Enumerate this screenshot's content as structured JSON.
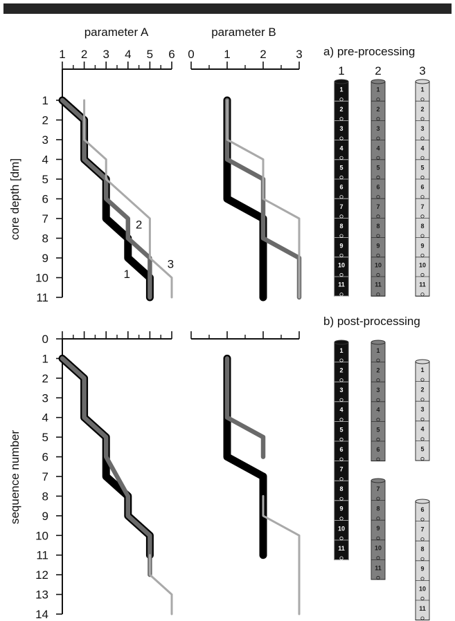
{
  "chart_data": [
    {
      "type": "line",
      "panel": "pre-processing",
      "x_axes": [
        {
          "title": "parameter A",
          "ticks": [
            "1",
            "2",
            "3",
            "4",
            "5",
            "6"
          ],
          "xlim": [
            1,
            6
          ]
        },
        {
          "title": "parameter B",
          "ticks": [
            "0",
            "1",
            "2",
            "3"
          ],
          "xlim": [
            0,
            3
          ]
        }
      ],
      "ylabel": "core depth [dm]",
      "yticks": [
        "1",
        "2",
        "3",
        "4",
        "5",
        "6",
        "7",
        "8",
        "9",
        "10",
        "11"
      ],
      "ylim": [
        1,
        11
      ],
      "series": [
        {
          "name": "1",
          "color": "#000000",
          "A": [
            [
              1,
              1
            ],
            [
              2,
              2
            ],
            [
              2,
              4
            ],
            [
              3,
              5
            ],
            [
              3,
              7
            ],
            [
              4,
              8
            ],
            [
              4,
              9
            ],
            [
              5,
              10
            ],
            [
              5,
              11
            ]
          ],
          "B": [
            [
              1,
              1
            ],
            [
              1,
              6
            ],
            [
              2,
              7
            ],
            [
              2,
              11
            ]
          ]
        },
        {
          "name": "2",
          "color": "#6a6a6a",
          "A": [
            [
              1,
              1
            ],
            [
              2,
              2
            ],
            [
              2,
              4
            ],
            [
              3,
              5
            ],
            [
              3,
              6
            ],
            [
              4,
              7
            ],
            [
              4,
              8
            ],
            [
              5,
              9
            ],
            [
              5,
              11
            ]
          ],
          "B": [
            [
              1,
              1
            ],
            [
              1,
              4
            ],
            [
              2,
              5
            ],
            [
              2,
              8
            ],
            [
              3,
              9
            ],
            [
              3,
              11
            ]
          ]
        },
        {
          "name": "3",
          "color": "#a9a9a9",
          "A": [
            [
              2,
              1
            ],
            [
              2,
              3
            ],
            [
              3,
              4
            ],
            [
              3,
              5
            ],
            [
              5,
              7
            ],
            [
              5,
              9
            ],
            [
              6,
              10
            ],
            [
              6,
              11
            ]
          ],
          "B": [
            [
              1,
              1
            ],
            [
              1,
              3
            ],
            [
              2,
              4
            ],
            [
              2,
              6
            ],
            [
              3,
              7
            ],
            [
              3,
              11
            ]
          ]
        }
      ],
      "line_labels": [
        {
          "text": "2",
          "x": 4.5,
          "y": 7.3
        },
        {
          "text": "1",
          "x": 3.95,
          "y": 9.8
        },
        {
          "text": "3",
          "x": 5.95,
          "y": 9.3
        }
      ]
    },
    {
      "type": "line",
      "panel": "post-processing",
      "ylabel": "sequence number",
      "yticks": [
        "0",
        "1",
        "2",
        "3",
        "4",
        "5",
        "6",
        "7",
        "8",
        "9",
        "10",
        "11",
        "12",
        "13",
        "14"
      ],
      "ylim": [
        0,
        14
      ],
      "xlim_A": [
        1,
        6
      ],
      "xlim_B": [
        0,
        3
      ],
      "series": [
        {
          "name": "1",
          "color": "#000000",
          "A": [
            [
              1,
              1
            ],
            [
              2,
              2
            ],
            [
              2,
              4
            ],
            [
              3,
              5
            ],
            [
              3,
              7
            ],
            [
              4,
              8
            ],
            [
              4,
              9
            ],
            [
              5,
              10
            ],
            [
              5,
              11
            ]
          ],
          "B": [
            [
              1,
              1
            ],
            [
              1,
              6
            ],
            [
              2,
              7
            ],
            [
              2,
              11
            ]
          ]
        },
        {
          "name": "2",
          "color": "#6a6a6a",
          "A": [
            [
              1,
              1
            ],
            [
              2,
              2
            ],
            [
              2,
              4
            ],
            [
              3,
              5
            ],
            [
              3,
              6
            ],
            [
              4,
              8
            ],
            [
              4,
              9
            ],
            [
              5,
              10
            ],
            [
              5,
              12
            ]
          ],
          "B": [
            [
              1,
              1
            ],
            [
              1,
              4
            ],
            [
              2,
              5
            ],
            [
              2,
              6
            ]
          ]
        },
        {
          "name": "3",
          "color": "#a9a9a9",
          "A": [
            [
              5,
              11
            ],
            [
              5,
              12
            ],
            [
              6,
              13
            ],
            [
              6,
              14
            ]
          ],
          "B": [
            [
              2,
              8
            ],
            [
              2,
              9
            ],
            [
              3,
              10
            ],
            [
              3,
              14
            ]
          ]
        }
      ]
    }
  ],
  "cores": {
    "pre_title": "a) pre-processing",
    "post_title": "b) post-processing",
    "column_labels": [
      "1",
      "2",
      "3"
    ],
    "colors": [
      "#111111",
      "#7f7f7f",
      "#d9d9d9"
    ],
    "text_colors": [
      "#ffffff",
      "#1a1a1a",
      "#1a1a1a"
    ],
    "pre": [
      [
        "1",
        "2",
        "3",
        "4",
        "5",
        "6",
        "7",
        "8",
        "9",
        "10",
        "11"
      ],
      [
        "1",
        "2",
        "3",
        "4",
        "5",
        "6",
        "7",
        "8",
        "9",
        "10",
        "11"
      ],
      [
        "1",
        "2",
        "3",
        "4",
        "5",
        "6",
        "7",
        "8",
        "9",
        "10",
        "11"
      ]
    ],
    "post": [
      [
        [
          "1",
          "2",
          "3",
          "4",
          "5",
          "6",
          "7",
          "8",
          "9",
          "10",
          "11"
        ]
      ],
      [
        [
          "1",
          "2",
          "3",
          "4",
          "5",
          "6"
        ],
        [
          "7",
          "8",
          "9",
          "10",
          "11"
        ]
      ],
      [
        [
          "1",
          "2",
          "3",
          "4",
          "5"
        ],
        [
          "6",
          "7",
          "8",
          "9",
          "10",
          "11"
        ]
      ]
    ]
  }
}
